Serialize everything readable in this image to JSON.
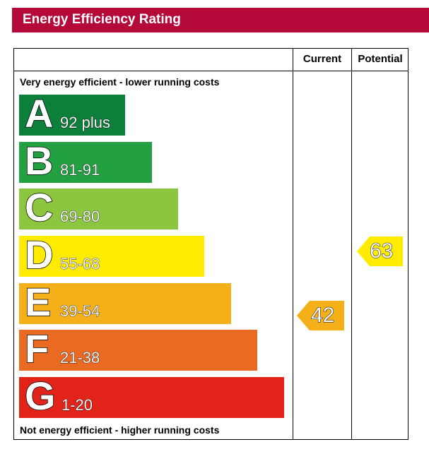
{
  "header": {
    "title": "Energy Efficiency Rating",
    "color": "#b5093a"
  },
  "columns": {
    "current": "Current",
    "potential": "Potential"
  },
  "captions": {
    "top": "Very energy efficient - lower running costs",
    "bottom": "Not energy efficient - higher running costs"
  },
  "chart_data": {
    "type": "bar",
    "title": "Energy Efficiency Rating",
    "bands": [
      {
        "letter": "A",
        "range": "92 plus",
        "min": 92,
        "max": 100,
        "color": "#0c7f3b"
      },
      {
        "letter": "B",
        "range": "81-91",
        "min": 81,
        "max": 91,
        "color": "#23a041"
      },
      {
        "letter": "C",
        "range": "69-80",
        "min": 69,
        "max": 80,
        "color": "#8cc63f"
      },
      {
        "letter": "D",
        "range": "55-68",
        "min": 55,
        "max": 68,
        "color": "#ffec00"
      },
      {
        "letter": "E",
        "range": "39-54",
        "min": 39,
        "max": 54,
        "color": "#f5af19"
      },
      {
        "letter": "F",
        "range": "21-38",
        "min": 21,
        "max": 38,
        "color": "#ea6a22"
      },
      {
        "letter": "G",
        "range": "1-20",
        "min": 1,
        "max": 20,
        "color": "#e2231a"
      }
    ],
    "ratings": {
      "current": {
        "value": 42,
        "label": "42",
        "band": "E",
        "color": "#f5af19"
      },
      "potential": {
        "value": 63,
        "label": "63",
        "band": "D",
        "color": "#ffec00"
      }
    }
  }
}
